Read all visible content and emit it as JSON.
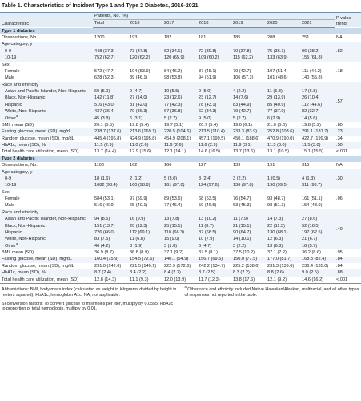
{
  "title": "Table 1. Characteristics of Incident Type 1 and Type 2 Diabetes, 2016-2021",
  "header": {
    "characteristic": "Characteristic",
    "span": "Patients, No. (%)",
    "columns": [
      "Total",
      "2016",
      "2017",
      "2018",
      "2019",
      "2020",
      "2021"
    ],
    "p": "P value trend"
  },
  "sections": [
    {
      "title": "Type 1 diabetes",
      "groups": [
        {
          "rows": [
            {
              "label": "Observations, No.",
              "values": [
                "1200",
                "193",
                "182",
                "181",
                "185",
                "208",
                "251"
              ]
            }
          ],
          "p": "NA"
        },
        {
          "heading": "Age category, y",
          "rows": [
            {
              "label": "0-9",
              "values": [
                "448 (37.3)",
                "73 (37.8)",
                "62 (34.1)",
                "72 (39.8)",
                "70 (37.8)",
                "75 (36.1)",
                "96 (38.2)"
              ]
            },
            {
              "label": "10-19",
              "values": [
                "752 (62.7)",
                "120 (62.2)",
                "120 (65.9)",
                "109 (60.2)",
                "115 (62.2)",
                "133 (63.9)",
                "155 (61.8)"
              ]
            }
          ],
          "p": ".82"
        },
        {
          "heading": "Sex",
          "rows": [
            {
              "label": "Female",
              "values": [
                "572 (47.7)",
                "104 (53.9)",
                "84 (46.2)",
                "87 (48.1)",
                "79 (42.7)",
                "107 (51.4)",
                "111 (44.2)"
              ]
            },
            {
              "label": "Male",
              "values": [
                "628 (52.3)",
                "89 (46.1)",
                "98 (53.8)",
                "94 (51.9)",
                "106 (57.3)",
                "101 (48.6)",
                "140 (55.8)"
              ]
            }
          ],
          "p": ".18"
        },
        {
          "heading": "Race and ethnicity",
          "rows": [
            {
              "label": "Asian and Pacific Islander, Non-Hispanic",
              "values": [
                "60 (5.0)",
                "9 (4.7)",
                "10 (5.5)",
                "9 (5.0)",
                "4 (2.2)",
                "11 (5.3)",
                "17 (6.8)"
              ]
            },
            {
              "label": "Black, Non-Hispanic",
              "values": [
                "142 (11.8)",
                "27 (14.0)",
                "23 (12.6)",
                "23 (12.7)",
                "14 (7.6)",
                "29 (13.9)",
                "26 (10.4)"
              ]
            },
            {
              "label": "Hispanic",
              "values": [
                "516 (43.0)",
                "81 (42.0)",
                "77 (42.3)",
                "78 (43.1)",
                "83 (44.9)",
                "85 (40.9)",
                "112 (44.6)"
              ]
            },
            {
              "label": "White, Non-Hispanic",
              "values": [
                "437 (36.4)",
                "70 (36.3)",
                "67 (36.8)",
                "62 (34.3)",
                "79 (42.7)",
                "77 (37.0)",
                "82 (32.7)"
              ]
            },
            {
              "label": "Other",
              "note": "a",
              "values": [
                "45 (3.8)",
                "6 (3.1)",
                "5 (2.7)",
                "9 (5.0)",
                "5 (2.7)",
                "6 (2.9)",
                "14 (5.6)"
              ]
            }
          ],
          "p": ".57"
        },
        {
          "rows": [
            {
              "label": "BMI, mean (SD)",
              "values": [
                "20.1 (5.5)",
                "19.8 (5.4)",
                "19.7 (5.1)",
                "20.7 (5.4)",
                "19.6 (6.1)",
                "21.0 (5.6)",
                "19.8 (5.2)"
              ]
            }
          ],
          "p": ".80"
        },
        {
          "rows": [
            {
              "label": "Fasting glucose, mean (SD), mg/dL",
              "values": [
                "238.7 (137.6)",
                "213.6 (169.1)",
                "220.5 (104.6)",
                "213.5 (110.4)",
                "233.3 (83.9)",
                "252.8 (103.6)",
                "291.1 (187.7)"
              ]
            }
          ],
          "p": ".23"
        },
        {
          "rows": [
            {
              "label": "Random glucose, mean (SD), mg/dL",
              "values": [
                "445.4 (196.8)",
                "424.9 (195.8)",
                "454.9 (208.1)",
                "457.1 (199.5)",
                "450.1 (188.6)",
                "470.9 (190.0)",
                "422.7 (199.9)"
              ]
            }
          ],
          "p": ".34"
        },
        {
          "rows": [
            {
              "label": "HbA1c, mean (SD), %",
              "values": [
                "11.5 (2.9)",
                "11.0 (2.6)",
                "11.6 (2.6)",
                "11.6 (2.9)",
                "11.9 (3.1)",
                "11.5 (3.0)",
                "11.5 (3.0)"
              ]
            }
          ],
          "p": ".50"
        },
        {
          "rows": [
            {
              "label": "Total health care utilization, mean (SD)",
              "values": [
                "13.7 (14.4)",
                "12.9 (15.6)",
                "12.1 (14.1)",
                "14.6 (16.5)",
                "13.7 (13.6)",
                "13.1 (10.5)",
                "15.1 (15.5)"
              ]
            }
          ],
          "p": "<.001"
        }
      ]
    },
    {
      "title": "Type 2 diabetes",
      "groups": [
        {
          "rows": [
            {
              "label": "Observations, No.",
              "values": [
                "1100",
                "162",
                "166",
                "127",
                "139",
                "191",
                "315"
              ]
            }
          ],
          "p": "NA"
        },
        {
          "heading": "Age category, y",
          "rows": [
            {
              "label": "0-9",
              "values": [
                "18 (1.6)",
                "2 (1.2)",
                "5 (3.0)",
                "3 (2.4)",
                "3 (2.2)",
                "1 (0.5)",
                "4 (1.3)"
              ]
            },
            {
              "label": "10-19",
              "values": [
                "1082 (98.4)",
                "160 (98.8)",
                "161 (97.0)",
                "124 (97.6)",
                "136 (97.8)",
                "190 (99.5)",
                "311 (98.7)"
              ]
            }
          ],
          "p": ".30"
        },
        {
          "heading": "Sex",
          "rows": [
            {
              "label": "Female",
              "values": [
                "584 (53.1)",
                "97 (59.9)",
                "89 (53.6)",
                "68 (53.5)",
                "76 (54.7)",
                "93 (48.7)",
                "161 (51.1)"
              ]
            },
            {
              "label": "Male",
              "values": [
                "516 (46.9)",
                "65 (40.1)",
                "77 (46.4)",
                "59 (46.5)",
                "63 (45.3)",
                "98 (51.3)",
                "154 (48.9)"
              ]
            }
          ],
          "p": ".06"
        },
        {
          "heading": "Race and ethnicity",
          "rows": [
            {
              "label": "Asian and Pacific Islander, Non-Hispanic",
              "values": [
                "94 (8.5)",
                "16 (9.9)",
                "13 (7.8)",
                "13 (10.2)",
                "11 (7.9)",
                "14 (7.3)",
                "27 (8.6)"
              ]
            },
            {
              "label": "Black, Non-Hispanic",
              "values": [
                "151 (13.7)",
                "20 (12.3)",
                "25 (15.1)",
                "11 (8.7)",
                "21 (15.1)",
                "22 (11.5)",
                "52 (16.5)"
              ]
            },
            {
              "label": "Hispanic",
              "values": [
                "726 (66.0)",
                "112 (69.1)",
                "110 (66.3)",
                "87 (68.5)",
                "90 (64.7)",
                "130 (68.1)",
                "197 (62.5)"
              ]
            },
            {
              "label": "White, Non-Hispanic",
              "values": [
                "83 (7.5)",
                "11 (6.8)",
                "15 (9.0)",
                "10 (7.9)",
                "14 (10.1)",
                "12 (6.3)",
                "21 (6.7)"
              ]
            },
            {
              "label": "Other",
              "note": "a",
              "values": [
                "46 (4.2)",
                "3 (1.9)",
                "3 (1.8)",
                "6 (4.7)",
                "3 (2.2)",
                "13 (6.8)",
                "18 (5.7)"
              ]
            }
          ],
          "p": ".40"
        },
        {
          "rows": [
            {
              "label": "BMI, mean (SD)",
              "values": [
                "36.9 (8.7)",
                "36.8 (8.9)",
                "37.1 (9.2)",
                "37.5 (8.1)",
                "37.5 (10.2)",
                "37.1 (7.2)",
                "36.2 (8.6)"
              ]
            }
          ],
          "p": ".95"
        },
        {
          "rows": [
            {
              "label": "Fasting glucose, mean (SD), mg/dL",
              "values": [
                "160.4 (75.9)",
                "154.5 (72.6)",
                "140.1 (54.9)",
                "156.7 (69.5)",
                "150.0 (77.5)",
                "177.0 (81.7)",
                "168.3 (82.4)"
              ]
            }
          ],
          "p": ".84"
        },
        {
          "rows": [
            {
              "label": "Random glucose, mean (SD), mg/dL",
              "values": [
                "231.0 (142.6)",
                "221.5 (140.1)",
                "222.9 (172.6)",
                "242.2 (134.7)",
                "225.2 (138.6)",
                "231.3 (139.6)",
                "236.4 (135.0)"
              ]
            }
          ],
          "p": ".84"
        },
        {
          "rows": [
            {
              "label": "HbA1c, mean (SD), %",
              "values": [
                "8.7 (2.4)",
                "8.4 (2.2)",
                "8.4 (2.3)",
                "8.7 (2.5)",
                "8.3 (2.2)",
                "8.8 (2.6)",
                "9.0 (2.5)"
              ]
            }
          ],
          "p": ".88"
        },
        {
          "rows": [
            {
              "label": "Total health care utilization, mean (SD)",
              "values": [
                "12.8 (14.3)",
                "11.1 (9.3)",
                "12.0 (13.9)",
                "11.7 (12.3)",
                "13.8 (17.6)",
                "12.1 (9.2)",
                "14.6 (16.2)"
              ]
            }
          ],
          "p": "<.001"
        }
      ]
    }
  ],
  "footnotes": {
    "abbreviations": "Abbreviations: BMI, body mass index (calculated as weight in kilograms divided by height in meters squared); HbA1c, hemoglobin A1c; NA, not applicable.",
    "conversion": "SI conversion factors: To convert glucose to millimoles per liter, multiply by 0.0555; HbA1c to proportion of total hemoglobin, multiply by 0.01.",
    "note_mark": "a",
    "note": "Other race and ethnicity included Native Hawaiian/Alaskan, multiracial, and all other types of responses not reported in the table."
  }
}
